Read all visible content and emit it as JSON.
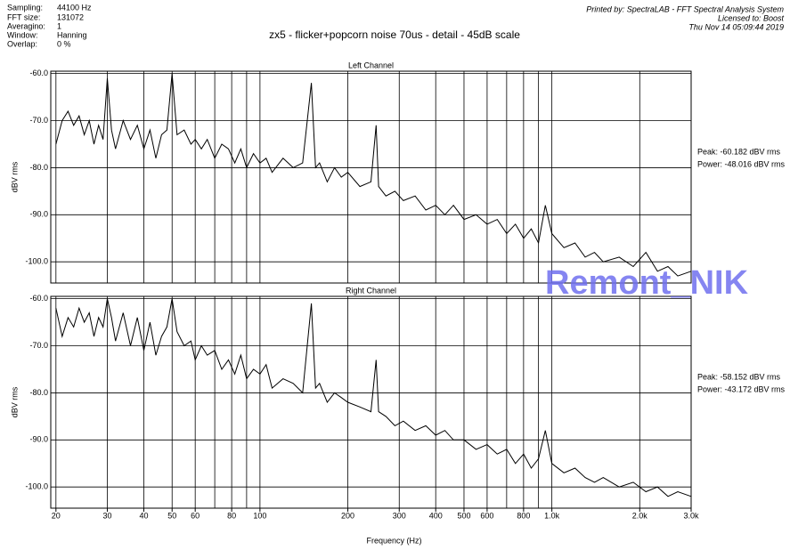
{
  "header": {
    "fields": [
      {
        "name": "Sampling:",
        "value": "44100 Hz"
      },
      {
        "name": "FFT size:",
        "value": "131072"
      },
      {
        "name": "Averagino:",
        "value": "1"
      },
      {
        "name": "Window:",
        "value": "Hanning"
      },
      {
        "name": "Overlap:",
        "value": "0 %"
      }
    ],
    "title": "zx5 - flicker+popcorn noise 70us - detail - 45dB scale",
    "printed_by": "Printed by: SpectraLAB - FFT Spectral Analysis System",
    "licensed_to": "Licensed to: Boost",
    "date": "Thu Nov 14 05:09:44 2019"
  },
  "watermark": "Remont_NIK",
  "chart_data": [
    {
      "type": "line",
      "title": "Left Channel",
      "ylabel": "dBV rms",
      "log_x": true,
      "color": "#000000",
      "xlim": [
        19.2,
        3000
      ],
      "ylim": [
        -104.5,
        -59.5
      ],
      "yticks": [
        {
          "value": -60,
          "label": "-60.0"
        },
        {
          "value": -70,
          "label": "-70.0"
        },
        {
          "value": -80,
          "label": "-80.0"
        },
        {
          "value": -90,
          "label": "-90.0"
        },
        {
          "value": -100,
          "label": "-100.0"
        }
      ],
      "xgrid": [
        20,
        30,
        40,
        50,
        60,
        70,
        80,
        90,
        100,
        200,
        300,
        400,
        500,
        600,
        700,
        800,
        900,
        1000,
        2000,
        3000
      ],
      "annotations": [
        "Peak: -60.182 dBV rms",
        "Power: -48.016 dBV rms"
      ],
      "x": [
        20,
        21,
        22,
        23,
        24,
        25,
        26,
        27,
        28,
        29,
        30,
        31,
        32,
        34,
        36,
        38,
        40,
        42,
        44,
        46,
        48,
        50,
        52,
        55,
        58,
        60,
        63,
        66,
        70,
        74,
        78,
        82,
        86,
        90,
        95,
        100,
        105,
        110,
        120,
        130,
        140,
        150,
        155,
        160,
        170,
        180,
        190,
        200,
        220,
        240,
        250,
        255,
        270,
        290,
        310,
        340,
        370,
        400,
        430,
        460,
        500,
        550,
        600,
        650,
        700,
        750,
        800,
        850,
        900,
        950,
        1000,
        1100,
        1200,
        1300,
        1400,
        1500,
        1700,
        1900,
        2100,
        2300,
        2500,
        2700,
        3000
      ],
      "values": [
        -75,
        -70,
        -68,
        -71,
        -69,
        -73,
        -70,
        -75,
        -71,
        -74,
        -61,
        -72,
        -76,
        -70,
        -74,
        -71,
        -76,
        -72,
        -78,
        -73,
        -72,
        -60,
        -73,
        -72,
        -75,
        -74,
        -76,
        -74,
        -78,
        -75,
        -76,
        -79,
        -76,
        -80,
        -77,
        -79,
        -78,
        -81,
        -78,
        -80,
        -79,
        -62,
        -80,
        -79,
        -83,
        -80,
        -82,
        -81,
        -84,
        -83,
        -71,
        -84,
        -86,
        -85,
        -87,
        -86,
        -89,
        -88,
        -90,
        -88,
        -91,
        -90,
        -92,
        -91,
        -94,
        -92,
        -95,
        -93,
        -96,
        -88,
        -94,
        -97,
        -96,
        -99,
        -98,
        -100,
        -99,
        -101,
        -98,
        -102,
        -101,
        -103,
        -102
      ]
    },
    {
      "type": "line",
      "title": "Right Channel",
      "ylabel": "dBV rms",
      "xlabel": "Frequency (Hz)",
      "log_x": true,
      "color": "#000000",
      "xlim": [
        19.2,
        3000
      ],
      "ylim": [
        -104.5,
        -59.5
      ],
      "yticks": [
        {
          "value": -60,
          "label": "-60.0"
        },
        {
          "value": -70,
          "label": "-70.0"
        },
        {
          "value": -80,
          "label": "-80.0"
        },
        {
          "value": -90,
          "label": "-90.0"
        },
        {
          "value": -100,
          "label": "-100.0"
        }
      ],
      "xgrid": [
        20,
        30,
        40,
        50,
        60,
        70,
        80,
        90,
        100,
        200,
        300,
        400,
        500,
        600,
        700,
        800,
        900,
        1000,
        2000,
        3000
      ],
      "xticks": [
        20,
        30,
        40,
        50,
        60,
        80,
        100,
        200,
        300,
        400,
        500,
        600,
        800,
        {
          "value": 1000,
          "label": "1.0k"
        },
        {
          "value": 2000,
          "label": "2.0k"
        },
        {
          "value": 3000,
          "label": "3.0k"
        }
      ],
      "annotations": [
        "Peak: -58.152 dBV rms",
        "Power: -43.172 dBV rms"
      ],
      "x": [
        20,
        21,
        22,
        23,
        24,
        25,
        26,
        27,
        28,
        29,
        30,
        31,
        32,
        34,
        36,
        38,
        40,
        42,
        44,
        46,
        48,
        50,
        52,
        55,
        58,
        60,
        63,
        66,
        70,
        74,
        78,
        82,
        86,
        90,
        95,
        100,
        105,
        110,
        120,
        130,
        140,
        150,
        155,
        160,
        170,
        180,
        190,
        200,
        220,
        240,
        250,
        255,
        270,
        290,
        310,
        340,
        370,
        400,
        430,
        460,
        500,
        550,
        600,
        650,
        700,
        750,
        800,
        850,
        900,
        950,
        1000,
        1100,
        1200,
        1300,
        1400,
        1500,
        1700,
        1900,
        2100,
        2300,
        2500,
        2700,
        3000
      ],
      "values": [
        -62,
        -68,
        -64,
        -66,
        -62,
        -65,
        -63,
        -68,
        -64,
        -66,
        -60,
        -64,
        -69,
        -63,
        -70,
        -64,
        -71,
        -65,
        -72,
        -68,
        -66,
        -60,
        -67,
        -70,
        -69,
        -73,
        -70,
        -72,
        -71,
        -75,
        -73,
        -76,
        -72,
        -77,
        -75,
        -76,
        -74,
        -79,
        -77,
        -78,
        -80,
        -61,
        -79,
        -78,
        -82,
        -80,
        -81,
        -82,
        -83,
        -84,
        -73,
        -84,
        -85,
        -87,
        -86,
        -88,
        -87,
        -89,
        -88,
        -90,
        -90,
        -92,
        -91,
        -93,
        -92,
        -95,
        -93,
        -96,
        -94,
        -88,
        -95,
        -97,
        -96,
        -98,
        -99,
        -98,
        -100,
        -99,
        -101,
        -100,
        -102,
        -101,
        -102
      ]
    }
  ]
}
